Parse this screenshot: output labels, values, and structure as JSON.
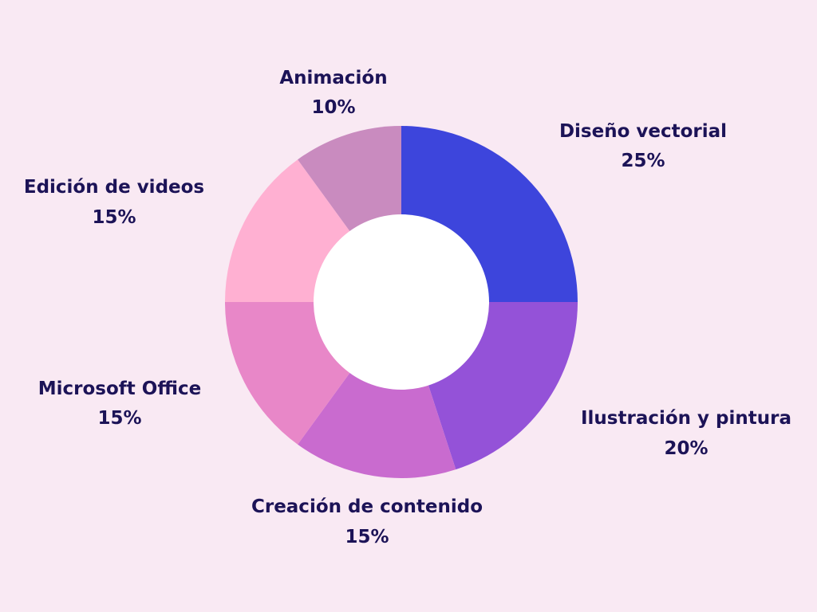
{
  "chart_data": {
    "type": "pie",
    "donut": true,
    "start": "top, clockwise",
    "slices": [
      {
        "label": "Diseño vectorial",
        "value": 25,
        "value_label": "25%",
        "color": "#3d45dc"
      },
      {
        "label": "Ilustración y pintura",
        "value": 20,
        "value_label": "20%",
        "color": "#9452d8"
      },
      {
        "label": "Creación de contenido",
        "value": 15,
        "value_label": "15%",
        "color": "#c96bcf"
      },
      {
        "label": "Microsoft Office",
        "value": 15,
        "value_label": "15%",
        "color": "#e887c8"
      },
      {
        "label": "Edición de videos",
        "value": 15,
        "value_label": "15%",
        "color": "#ffb0d2"
      },
      {
        "label": "Animación",
        "value": 10,
        "value_label": "10%",
        "color": "#c98bbf"
      }
    ]
  }
}
